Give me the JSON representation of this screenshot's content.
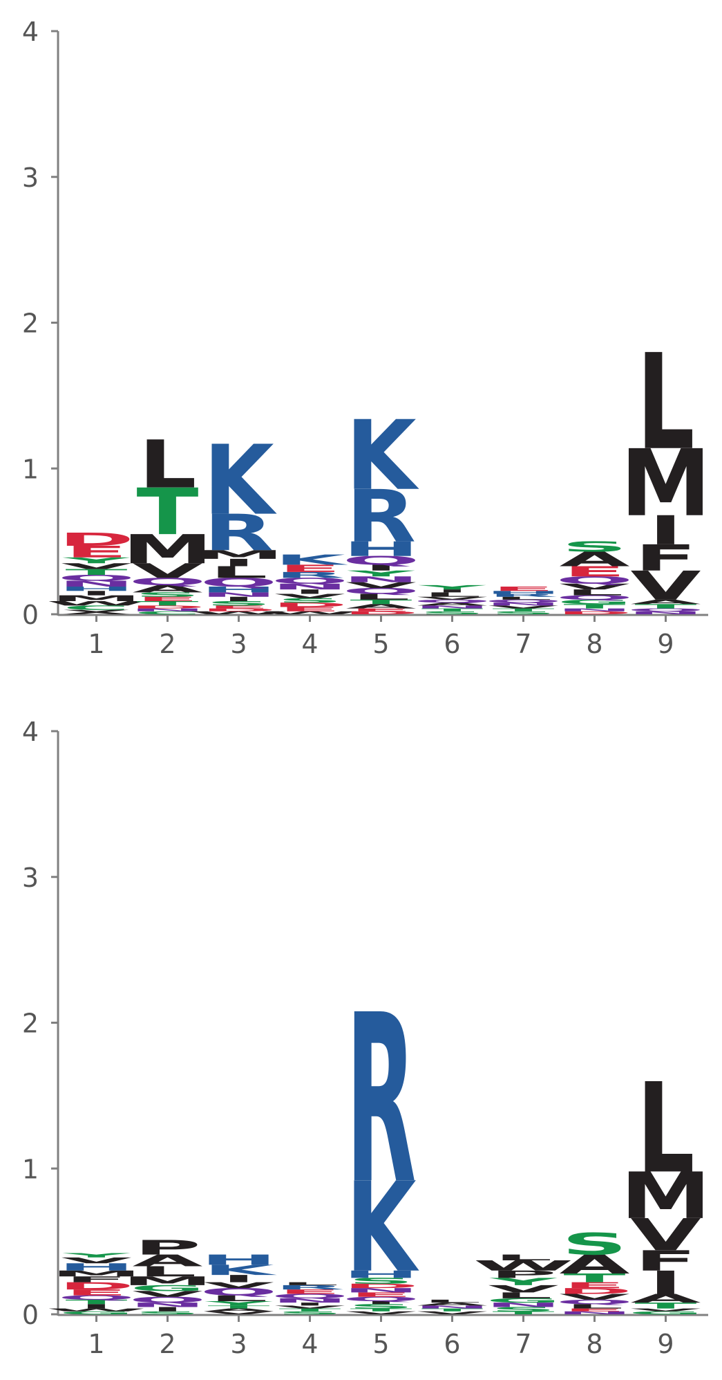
{
  "colors": {
    "hydrophobic": "#231f20",
    "basic": "#255b9c",
    "acidic": "#d7263d",
    "polar": "#15954a",
    "amide": "#6a2ea0",
    "axis": "#808080",
    "tick_text": "#555555"
  },
  "chart_data": [
    {
      "type": "sequence-logo",
      "title": "",
      "xlabel": "",
      "ylabel": "",
      "ylim": [
        0,
        4
      ],
      "yticks": [
        "0",
        "1",
        "2",
        "3",
        "4"
      ],
      "xticks": [
        "1",
        "2",
        "3",
        "4",
        "5",
        "6",
        "7",
        "8",
        "9"
      ],
      "positions": [
        {
          "pos": "1",
          "letters": [
            [
              "X",
              0.03
            ],
            [
              "C",
              0.03
            ],
            [
              "W",
              0.03
            ],
            [
              "M",
              0.04
            ],
            [
              "I",
              0.03
            ],
            [
              "H",
              0.03
            ],
            [
              "N",
              0.04
            ],
            [
              "Q",
              0.04
            ],
            [
              "T",
              0.04
            ],
            [
              "V",
              0.04
            ],
            [
              "Y",
              0.04
            ],
            [
              "E",
              0.08
            ],
            [
              "D",
              0.09
            ]
          ]
        },
        {
          "pos": "2",
          "letters": [
            [
              "C",
              0.02
            ],
            [
              "N",
              0.02
            ],
            [
              "D",
              0.02
            ],
            [
              "T",
              0.03
            ],
            [
              "E",
              0.03
            ],
            [
              "S",
              0.03
            ],
            [
              "A",
              0.05
            ],
            [
              "Q",
              0.05
            ],
            [
              "V",
              0.1
            ],
            [
              "M",
              0.2
            ],
            [
              "T",
              0.32
            ],
            [
              "L",
              0.33
            ]
          ]
        },
        {
          "pos": "3",
          "letters": [
            [
              "W",
              0.02
            ],
            [
              "D",
              0.02
            ],
            [
              "E",
              0.02
            ],
            [
              "S",
              0.03
            ],
            [
              "I",
              0.03
            ],
            [
              "N",
              0.03
            ],
            [
              "H",
              0.04
            ],
            [
              "Q",
              0.06
            ],
            [
              "L",
              0.08
            ],
            [
              "I",
              0.05
            ],
            [
              "M",
              0.06
            ],
            [
              "R",
              0.25
            ],
            [
              "K",
              0.48
            ]
          ]
        },
        {
          "pos": "4",
          "letters": [
            [
              "W",
              0.02
            ],
            [
              "E",
              0.03
            ],
            [
              "D",
              0.03
            ],
            [
              "S",
              0.03
            ],
            [
              "V",
              0.03
            ],
            [
              "I",
              0.03
            ],
            [
              "N",
              0.04
            ],
            [
              "Q",
              0.04
            ],
            [
              "R",
              0.04
            ],
            [
              "E",
              0.05
            ],
            [
              "K",
              0.07
            ]
          ]
        },
        {
          "pos": "5",
          "letters": [
            [
              "D",
              0.02
            ],
            [
              "E",
              0.02
            ],
            [
              "A",
              0.03
            ],
            [
              "T",
              0.03
            ],
            [
              "L",
              0.04
            ],
            [
              "Q",
              0.04
            ],
            [
              "V",
              0.04
            ],
            [
              "N",
              0.04
            ],
            [
              "Y",
              0.04
            ],
            [
              "I",
              0.04
            ],
            [
              "Q",
              0.06
            ],
            [
              "H",
              0.1
            ],
            [
              "R",
              0.36
            ],
            [
              "K",
              0.48
            ]
          ]
        },
        {
          "pos": "6",
          "letters": [
            [
              "S",
              0.02
            ],
            [
              "T",
              0.02
            ],
            [
              "N",
              0.02
            ],
            [
              "A",
              0.02
            ],
            [
              "Q",
              0.02
            ],
            [
              "V",
              0.02
            ],
            [
              "L",
              0.03
            ],
            [
              "I",
              0.02
            ],
            [
              "Y",
              0.03
            ]
          ]
        },
        {
          "pos": "7",
          "letters": [
            [
              "S",
              0.02
            ],
            [
              "T",
              0.02
            ],
            [
              "V",
              0.02
            ],
            [
              "N",
              0.02
            ],
            [
              "Q",
              0.02
            ],
            [
              "L",
              0.02
            ],
            [
              "R",
              0.02
            ],
            [
              "H",
              0.02
            ],
            [
              "E",
              0.03
            ]
          ]
        },
        {
          "pos": "8",
          "letters": [
            [
              "D",
              0.02
            ],
            [
              "N",
              0.02
            ],
            [
              "T",
              0.03
            ],
            [
              "G",
              0.03
            ],
            [
              "Q",
              0.03
            ],
            [
              "L",
              0.04
            ],
            [
              "V",
              0.04
            ],
            [
              "Q",
              0.05
            ],
            [
              "E",
              0.07
            ],
            [
              "A",
              0.1
            ],
            [
              "S",
              0.07
            ]
          ]
        },
        {
          "pos": "9",
          "letters": [
            [
              "N",
              0.02
            ],
            [
              "Q",
              0.02
            ],
            [
              "T",
              0.03
            ],
            [
              "A",
              0.03
            ],
            [
              "V",
              0.2
            ],
            [
              "F",
              0.18
            ],
            [
              "I",
              0.2
            ],
            [
              "M",
              0.46
            ],
            [
              "L",
              0.66
            ]
          ]
        }
      ]
    },
    {
      "type": "sequence-logo",
      "title": "",
      "xlabel": "",
      "ylabel": "",
      "ylim": [
        0,
        4
      ],
      "yticks": [
        "0",
        "1",
        "2",
        "3",
        "4"
      ],
      "xticks": [
        "1",
        "2",
        "3",
        "4",
        "5",
        "6",
        "7",
        "8",
        "9"
      ],
      "positions": [
        {
          "pos": "1",
          "letters": [
            [
              "G",
              0.02
            ],
            [
              "W",
              0.02
            ],
            [
              "I",
              0.03
            ],
            [
              "T",
              0.03
            ],
            [
              "Q",
              0.03
            ],
            [
              "E",
              0.04
            ],
            [
              "D",
              0.05
            ],
            [
              "F",
              0.04
            ],
            [
              "M",
              0.04
            ],
            [
              "H",
              0.05
            ],
            [
              "V",
              0.04
            ],
            [
              "Y",
              0.03
            ]
          ]
        },
        {
          "pos": "2",
          "letters": [
            [
              "S",
              0.02
            ],
            [
              "I",
              0.03
            ],
            [
              "N",
              0.03
            ],
            [
              "Q",
              0.04
            ],
            [
              "V",
              0.04
            ],
            [
              "G",
              0.04
            ],
            [
              "M",
              0.06
            ],
            [
              "L",
              0.07
            ],
            [
              "A",
              0.08
            ],
            [
              "P",
              0.1
            ]
          ]
        },
        {
          "pos": "3",
          "letters": [
            [
              "V",
              0.02
            ],
            [
              "A",
              0.02
            ],
            [
              "T",
              0.02
            ],
            [
              "Y",
              0.03
            ],
            [
              "L",
              0.04
            ],
            [
              "Q",
              0.05
            ],
            [
              "V",
              0.04
            ],
            [
              "I",
              0.05
            ],
            [
              "K",
              0.07
            ],
            [
              "H",
              0.07
            ]
          ]
        },
        {
          "pos": "4",
          "letters": [
            [
              "S",
              0.02
            ],
            [
              "T",
              0.02
            ],
            [
              "V",
              0.02
            ],
            [
              "I",
              0.02
            ],
            [
              "N",
              0.03
            ],
            [
              "Q",
              0.03
            ],
            [
              "E",
              0.03
            ],
            [
              "R",
              0.03
            ],
            [
              "L",
              0.02
            ]
          ]
        },
        {
          "pos": "5",
          "letters": [
            [
              "V",
              0.02
            ],
            [
              "T",
              0.02
            ],
            [
              "S",
              0.03
            ],
            [
              "I",
              0.02
            ],
            [
              "Q",
              0.03
            ],
            [
              "E",
              0.03
            ],
            [
              "N",
              0.03
            ],
            [
              "D",
              0.03
            ],
            [
              "S",
              0.04
            ],
            [
              "H",
              0.05
            ],
            [
              "K",
              0.62
            ],
            [
              "R",
              1.16
            ]
          ]
        },
        {
          "pos": "6",
          "letters": [
            [
              "V",
              0.02
            ],
            [
              "T",
              0.02
            ],
            [
              "N",
              0.02
            ],
            [
              "A",
              0.02
            ],
            [
              "L",
              0.02
            ]
          ]
        },
        {
          "pos": "7",
          "letters": [
            [
              "T",
              0.02
            ],
            [
              "S",
              0.03
            ],
            [
              "N",
              0.03
            ],
            [
              "G",
              0.03
            ],
            [
              "L",
              0.04
            ],
            [
              "V",
              0.05
            ],
            [
              "Y",
              0.05
            ],
            [
              "P",
              0.05
            ],
            [
              "W",
              0.07
            ],
            [
              "L",
              0.04
            ]
          ]
        },
        {
          "pos": "8",
          "letters": [
            [
              "N",
              0.02
            ],
            [
              "E",
              0.02
            ],
            [
              "L",
              0.03
            ],
            [
              "Q",
              0.03
            ],
            [
              "V",
              0.04
            ],
            [
              "D",
              0.04
            ],
            [
              "E",
              0.04
            ],
            [
              "T",
              0.06
            ],
            [
              "A",
              0.13
            ],
            [
              "S",
              0.15
            ]
          ]
        },
        {
          "pos": "9",
          "letters": [
            [
              "G",
              0.02
            ],
            [
              "V",
              0.02
            ],
            [
              "T",
              0.04
            ],
            [
              "A",
              0.06
            ],
            [
              "I",
              0.16
            ],
            [
              "F",
              0.14
            ],
            [
              "V",
              0.22
            ],
            [
              "M",
              0.32
            ],
            [
              "L",
              0.62
            ]
          ]
        }
      ]
    }
  ]
}
